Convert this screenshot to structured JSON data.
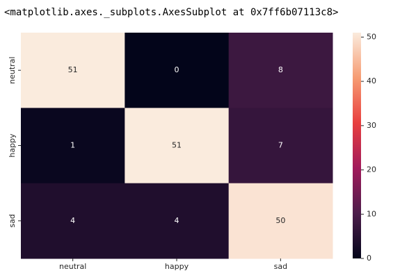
{
  "header": "<matplotlib.axes._subplots.AxesSubplot at 0x7ff6b07113c8>",
  "chart_data": {
    "type": "heatmap",
    "rows": [
      "neutral",
      "happy",
      "sad"
    ],
    "columns": [
      "neutral",
      "happy",
      "sad"
    ],
    "values": [
      [
        51,
        0,
        8
      ],
      [
        1,
        51,
        7
      ],
      [
        4,
        4,
        50
      ]
    ],
    "zlim": [
      0,
      51
    ],
    "zticks": [
      0,
      10,
      20,
      30,
      40,
      50
    ],
    "colormap": [
      "#03051a",
      "#4c1d4b",
      "#a11a5b",
      "#e83f3f",
      "#f69c73",
      "#faebdd"
    ]
  }
}
